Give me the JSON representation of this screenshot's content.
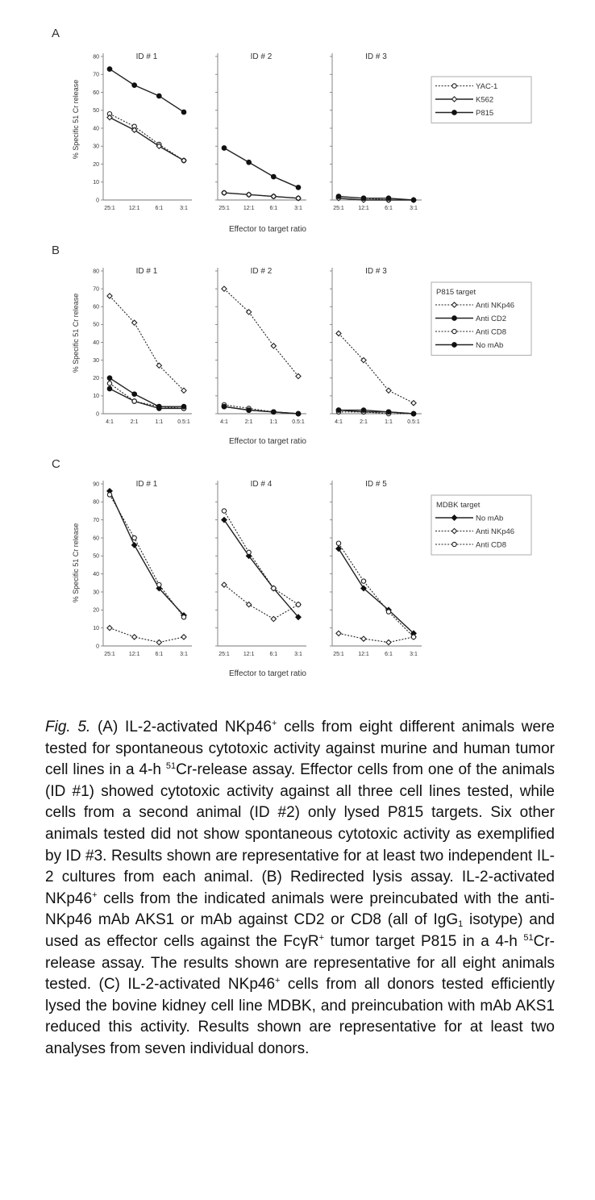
{
  "chart_data": [
    {
      "type": "line",
      "panel": "A",
      "ylabel": "% Specific 51 Cr release",
      "xlabel": "Effector to target ratio",
      "categories": [
        "25:1",
        "12:1",
        "6:1",
        "3:1"
      ],
      "ylim": [
        0,
        80
      ],
      "yticks": [
        0,
        10,
        20,
        30,
        40,
        50,
        60,
        70,
        80
      ],
      "legend": {
        "title": "",
        "position": "right",
        "entries": [
          {
            "label": "YAC-1",
            "style": "dotted",
            "marker": "open-circle"
          },
          {
            "label": "K562",
            "style": "solid",
            "marker": "open-diamond"
          },
          {
            "label": "P815",
            "style": "solid",
            "marker": "filled-circle"
          }
        ]
      },
      "subplots": [
        {
          "title": "ID # 1",
          "series": [
            {
              "name": "YAC-1",
              "values": [
                48,
                41,
                31,
                22
              ]
            },
            {
              "name": "K562",
              "values": [
                46,
                39,
                30,
                22
              ]
            },
            {
              "name": "P815",
              "values": [
                73,
                64,
                58,
                49
              ]
            }
          ]
        },
        {
          "title": "ID # 2",
          "series": [
            {
              "name": "YAC-1",
              "values": [
                4,
                3,
                2,
                1
              ]
            },
            {
              "name": "K562",
              "values": [
                4,
                3,
                2,
                1
              ]
            },
            {
              "name": "P815",
              "values": [
                29,
                21,
                13,
                7
              ]
            }
          ]
        },
        {
          "title": "ID # 3",
          "series": [
            {
              "name": "YAC-1",
              "values": [
                2,
                1,
                0,
                0
              ]
            },
            {
              "name": "K562",
              "values": [
                1,
                0,
                0,
                0
              ]
            },
            {
              "name": "P815",
              "values": [
                2,
                1,
                1,
                0
              ]
            }
          ]
        }
      ]
    },
    {
      "type": "line",
      "panel": "B",
      "ylabel": "% Specific 51 Cr release",
      "xlabel": "Effector to target ratio",
      "categories": [
        "4:1",
        "2:1",
        "1:1",
        "0.5:1"
      ],
      "ylim": [
        0,
        80
      ],
      "yticks": [
        0,
        10,
        20,
        30,
        40,
        50,
        60,
        70,
        80
      ],
      "legend": {
        "title": "P815 target",
        "position": "right",
        "entries": [
          {
            "label": "Anti NKp46",
            "style": "dotted",
            "marker": "open-diamond"
          },
          {
            "label": "Anti CD2",
            "style": "solid",
            "marker": "filled-circle"
          },
          {
            "label": "Anti CD8",
            "style": "dotted",
            "marker": "open-circle"
          },
          {
            "label": "No mAb",
            "style": "solid",
            "marker": "filled-circle"
          }
        ]
      },
      "subplots": [
        {
          "title": "ID # 1",
          "series": [
            {
              "name": "Anti NKp46",
              "values": [
                66,
                51,
                27,
                13
              ]
            },
            {
              "name": "Anti CD2",
              "values": [
                14,
                7,
                3,
                3
              ]
            },
            {
              "name": "Anti CD8",
              "values": [
                17,
                7,
                4,
                3
              ]
            },
            {
              "name": "No mAb",
              "values": [
                20,
                11,
                4,
                4
              ]
            }
          ]
        },
        {
          "title": "ID # 2",
          "series": [
            {
              "name": "Anti NKp46",
              "values": [
                70,
                57,
                38,
                21
              ]
            },
            {
              "name": "Anti CD2",
              "values": [
                4,
                2,
                1,
                0
              ]
            },
            {
              "name": "Anti CD8",
              "values": [
                5,
                3,
                1,
                0
              ]
            },
            {
              "name": "No mAb",
              "values": [
                4,
                2,
                1,
                0
              ]
            }
          ]
        },
        {
          "title": "ID # 3",
          "series": [
            {
              "name": "Anti NKp46",
              "values": [
                45,
                30,
                13,
                6
              ]
            },
            {
              "name": "Anti CD2",
              "values": [
                2,
                1,
                1,
                0
              ]
            },
            {
              "name": "Anti CD8",
              "values": [
                1,
                1,
                0,
                0
              ]
            },
            {
              "name": "No mAb",
              "values": [
                2,
                2,
                1,
                0
              ]
            }
          ]
        }
      ]
    },
    {
      "type": "line",
      "panel": "C",
      "ylabel": "% Specific 51 Cr release",
      "xlabel": "Effector to target ratio",
      "categories": [
        "25:1",
        "12:1",
        "6:1",
        "3:1"
      ],
      "ylim": [
        0,
        90
      ],
      "yticks": [
        0,
        10,
        20,
        30,
        40,
        50,
        60,
        70,
        80,
        90
      ],
      "legend": {
        "title": "MDBK target",
        "position": "right",
        "entries": [
          {
            "label": "No mAb",
            "style": "solid",
            "marker": "filled-diamond"
          },
          {
            "label": "Anti NKp46",
            "style": "dotted",
            "marker": "open-diamond"
          },
          {
            "label": "Anti CD8",
            "style": "dotted",
            "marker": "open-circle"
          }
        ]
      },
      "subplots": [
        {
          "title": "ID # 1",
          "series": [
            {
              "name": "No mAb",
              "values": [
                86,
                56,
                32,
                17
              ]
            },
            {
              "name": "Anti NKp46",
              "values": [
                10,
                5,
                2,
                5
              ]
            },
            {
              "name": "Anti CD8",
              "values": [
                84,
                60,
                34,
                16
              ]
            }
          ]
        },
        {
          "title": "ID # 4",
          "series": [
            {
              "name": "No mAb",
              "values": [
                70,
                50,
                32,
                16
              ]
            },
            {
              "name": "Anti NKp46",
              "values": [
                34,
                23,
                15,
                23
              ]
            },
            {
              "name": "Anti CD8",
              "values": [
                75,
                52,
                32,
                23
              ]
            }
          ]
        },
        {
          "title": "ID # 5",
          "series": [
            {
              "name": "No mAb",
              "values": [
                54,
                32,
                20,
                7
              ]
            },
            {
              "name": "Anti NKp46",
              "values": [
                7,
                4,
                2,
                5
              ]
            },
            {
              "name": "Anti CD8",
              "values": [
                57,
                36,
                19,
                5
              ]
            }
          ]
        }
      ]
    }
  ],
  "caption": {
    "fig_label": "Fig. 5.",
    "text": " (A) IL-2-activated NKp46+ cells from eight different animals were tested for spontaneous cytotoxic activity against murine and human tumor cell lines in a 4-h 51Cr-release assay. Effector cells from one of the animals (ID #1) showed cytotoxic activity against all three cell lines tested, while cells from a second animal (ID #2) only lysed P815 targets. Six other animals tested did not show spontaneous cytotoxic activity as exemplified by ID #3. Results shown are representative for at least two independent IL-2 cultures from each animal. (B) Redirected lysis assay. IL-2-activated NKp46+ cells from the indicated animals were preincubated with the anti-NKp46 mAb AKS1 or mAb against CD2 or CD8 (all of IgG1 isotype) and used as effector cells against the FcγR+ tumor target P815 in a 4-h 51Cr-release assay. The results shown are representative for all eight animals tested. (C) IL-2-activated NKp46+ cells from all donors tested efficiently lysed the bovine kidney cell line MDBK, and preincubation with mAb AKS1 reduced this activity. Results shown are representative for at least two analyses from seven individual donors.",
    "segments": [
      {
        "t": " (A) IL-2-activated NKp46",
        "f": ""
      },
      {
        "t": "+",
        "f": "sup"
      },
      {
        "t": " cells from eight different animals were tested for spontaneous cytotoxic activity against murine and human tumor cell lines in a 4-h ",
        "f": ""
      },
      {
        "t": "51",
        "f": "sup"
      },
      {
        "t": "Cr-release assay. Effector cells from one of the animals (ID #1) showed cytotoxic activity against all three cell lines tested, while cells from a second animal (ID #2) only lysed P815 targets. Six other animals tested did not show spontaneous cytotoxic activity as exemplified by ID #3. Results shown are representative for at least two independent IL-2 cultures from each animal. (B) Redirected lysis assay. IL-2-activated NKp46",
        "f": ""
      },
      {
        "t": "+",
        "f": "sup"
      },
      {
        "t": " cells from the indicated animals were preincubated with the anti-NKp46 mAb AKS1 or mAb against CD2 or CD8 (all of IgG",
        "f": ""
      },
      {
        "t": "1",
        "f": "sub"
      },
      {
        "t": " isotype) and used as effector cells against the FcγR",
        "f": ""
      },
      {
        "t": "+",
        "f": "sup"
      },
      {
        "t": " tumor target P815 in a 4-h ",
        "f": ""
      },
      {
        "t": "51",
        "f": "sup"
      },
      {
        "t": "Cr-release assay. The results shown are representative for all eight animals tested. (C) IL-2-activated NKp46",
        "f": ""
      },
      {
        "t": "+",
        "f": "sup"
      },
      {
        "t": " cells from all donors tested efficiently lysed the bovine kidney cell line MDBK, and preincubation with mAb AKS1 reduced this activity. Results shown are representative for at least two analyses from seven individual donors.",
        "f": ""
      }
    ]
  }
}
